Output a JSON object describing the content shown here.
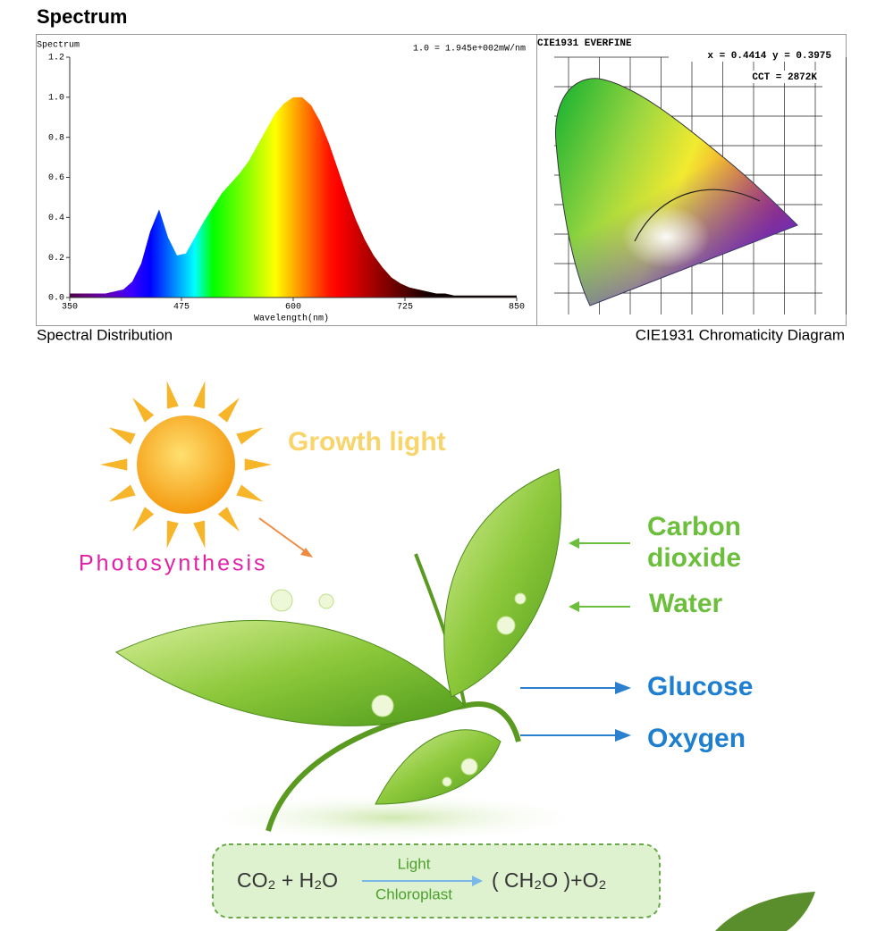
{
  "header": {
    "title": "Spectrum"
  },
  "chart_data": {
    "type": "area",
    "title": "Spectrum",
    "annotation": "1.0 = 1.945e+002mW/nm",
    "x_label": "Wavelength(nm)",
    "caption": "Spectral Distribution",
    "x": [
      350,
      360,
      370,
      380,
      390,
      400,
      410,
      420,
      430,
      440,
      450,
      460,
      470,
      480,
      490,
      500,
      510,
      520,
      530,
      540,
      550,
      560,
      570,
      580,
      590,
      600,
      610,
      620,
      630,
      640,
      650,
      660,
      670,
      680,
      690,
      700,
      710,
      720,
      730,
      740,
      750,
      760,
      770,
      780,
      790,
      800,
      810,
      820,
      830,
      840,
      850
    ],
    "values": [
      0.02,
      0.02,
      0.02,
      0.02,
      0.02,
      0.03,
      0.04,
      0.08,
      0.17,
      0.33,
      0.44,
      0.3,
      0.21,
      0.22,
      0.3,
      0.38,
      0.45,
      0.52,
      0.57,
      0.62,
      0.68,
      0.76,
      0.84,
      0.92,
      0.97,
      1.0,
      1.0,
      0.96,
      0.88,
      0.77,
      0.64,
      0.51,
      0.39,
      0.29,
      0.21,
      0.15,
      0.1,
      0.07,
      0.05,
      0.04,
      0.03,
      0.02,
      0.02,
      0.01,
      0.01,
      0.01,
      0.01,
      0.01,
      0.01,
      0.01,
      0.01
    ],
    "xlim": [
      350,
      850
    ],
    "xticks": [
      350,
      475,
      600,
      725,
      850
    ],
    "ylim": [
      0,
      1.2
    ],
    "yticks": [
      {
        "value": 0,
        "label": "0.0"
      },
      0.2,
      0.4,
      0.6,
      0.8,
      {
        "value": 1,
        "label": "1.0"
      },
      1.2
    ]
  },
  "cie": {
    "title": "CIE1931  EVERFINE",
    "coords": "x = 0.4414 y = 0.3975",
    "cct": "CCT = 2872K",
    "caption": "CIE1931 Chromaticity Diagram"
  },
  "illustration": {
    "growth": "Growth light",
    "photosynthesis": "Photosynthesis",
    "inputs": [
      "Carbon",
      "dioxide",
      "Water"
    ],
    "outputs": [
      "Glucose",
      "Oxygen"
    ],
    "equation": {
      "left": "CO₂ + H₂O",
      "top": "Light",
      "bottom": "Chloroplast",
      "right": "( CH₂O )+O₂"
    }
  }
}
